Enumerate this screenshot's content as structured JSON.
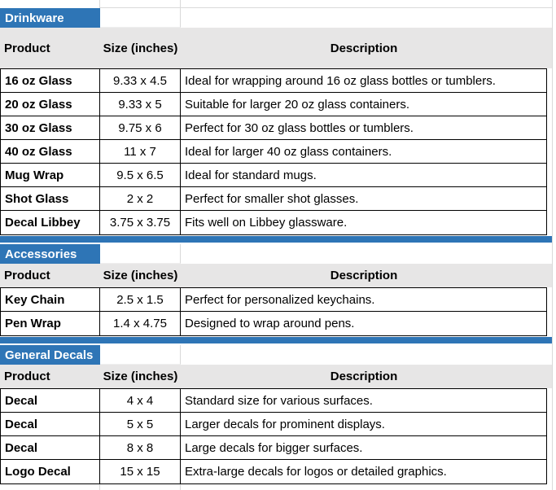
{
  "colors": {
    "accent_blue": "#2E75B6",
    "header_gray": "#E7E6E6",
    "table_border": "#000000",
    "gridline": "#D9D9D9"
  },
  "columns": {
    "product": "Product",
    "size": "Size (inches)",
    "description": "Description"
  },
  "sections": [
    {
      "title": "Drinkware",
      "rows": [
        {
          "product": "16 oz Glass",
          "size": "9.33 x 4.5",
          "description": "Ideal for wrapping around 16 oz glass bottles or tumblers."
        },
        {
          "product": "20 oz Glass",
          "size": "9.33 x 5",
          "description": "Suitable for larger 20 oz glass containers."
        },
        {
          "product": "30 oz Glass",
          "size": "9.75 x 6",
          "description": "Perfect for 30 oz glass bottles or tumblers."
        },
        {
          "product": "40 oz Glass",
          "size": "11 x 7",
          "description": "Ideal for larger 40 oz glass containers."
        },
        {
          "product": "Mug Wrap",
          "size": "9.5 x 6.5",
          "description": "Ideal for standard mugs."
        },
        {
          "product": "Shot Glass",
          "size": "2 x 2",
          "description": "Perfect for smaller shot glasses."
        },
        {
          "product": "Decal Libbey",
          "size": "3.75 x 3.75",
          "description": "Fits well on Libbey glassware."
        }
      ]
    },
    {
      "title": "Accessories",
      "rows": [
        {
          "product": "Key Chain",
          "size": "2.5 x 1.5",
          "description": "Perfect for personalized keychains."
        },
        {
          "product": "Pen Wrap",
          "size": "1.4 x 4.75",
          "description": "Designed to wrap around pens."
        }
      ]
    },
    {
      "title": "General Decals",
      "rows": [
        {
          "product": "Decal",
          "size": "4 x 4",
          "description": "Standard size for various surfaces."
        },
        {
          "product": "Decal",
          "size": "5 x 5",
          "description": "Larger decals for prominent displays."
        },
        {
          "product": "Decal",
          "size": "8 x 8",
          "description": "Large decals for bigger surfaces."
        },
        {
          "product": "Logo Decal",
          "size": "15 x 15",
          "description": "Extra-large decals for logos or detailed graphics."
        }
      ]
    }
  ]
}
